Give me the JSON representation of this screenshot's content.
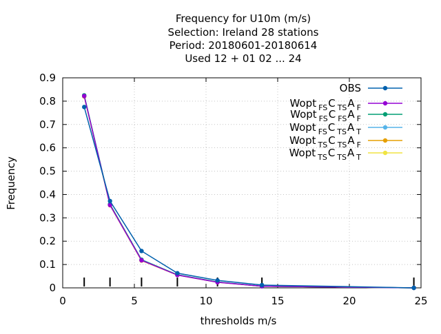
{
  "chart_data": {
    "type": "line",
    "title_lines": [
      "Frequency  for U10m (m/s)",
      "Selection: Ireland      28 stations",
      "Period: 20180601-20180614",
      "Used  12 + 01 02 ... 24"
    ],
    "xlabel": "thresholds m/s",
    "ylabel": "Frequency",
    "xlim": [
      0,
      25
    ],
    "ylim": [
      0,
      0.9
    ],
    "xticks": [
      "0",
      "5",
      "10",
      "15",
      "20",
      "25"
    ],
    "xtick_values": [
      0,
      5,
      10,
      15,
      20,
      25
    ],
    "yticks": [
      "0",
      "0.1",
      "0.2",
      "0.3",
      "0.4",
      "0.5",
      "0.6",
      "0.7",
      "0.8",
      "0.9"
    ],
    "ytick_values": [
      0,
      0.1,
      0.2,
      0.3,
      0.4,
      0.5,
      0.6,
      0.7,
      0.8,
      0.9
    ],
    "threshold_markers": [
      1.5,
      3.3,
      5.5,
      8,
      10.8,
      13.9,
      24.5
    ],
    "grid": true,
    "legend_position": "top-right",
    "series": [
      {
        "name": "OBS",
        "label_base": "OBS",
        "label_parts": [],
        "color": "#0060ad",
        "x": [
          1.5,
          3.3,
          5.5,
          8,
          10.8,
          13.9,
          24.5
        ],
        "y": [
          0.775,
          0.372,
          0.158,
          0.063,
          0.032,
          0.012,
          0.0
        ]
      },
      {
        "name": "Wopt FS CTS AF",
        "label_base": "Wopt",
        "label_parts": [
          [
            "FS",
            "C"
          ],
          [
            "TS",
            "A"
          ],
          [
            "F",
            ""
          ]
        ],
        "color": "#9400d3",
        "x": [
          1.5,
          3.3,
          5.5,
          8,
          10.8,
          13.9,
          24.5
        ],
        "y": [
          0.822,
          0.355,
          0.118,
          0.055,
          0.024,
          0.007,
          0.0
        ]
      },
      {
        "name": "Wopt FS CFS AF",
        "label_base": "Wopt",
        "label_parts": [
          [
            "FS",
            "C"
          ],
          [
            "FS",
            "A"
          ],
          [
            "F",
            ""
          ]
        ],
        "color": "#009e73",
        "x": [
          1.5,
          3.3,
          5.5,
          8,
          10.8,
          13.9,
          24.5
        ],
        "y": [
          0.825,
          0.358,
          0.12,
          0.056,
          0.025,
          0.007,
          0.0
        ]
      },
      {
        "name": "Wopt FS CTS AT",
        "label_base": "Wopt",
        "label_parts": [
          [
            "FS",
            "C"
          ],
          [
            "TS",
            "A"
          ],
          [
            "T",
            ""
          ]
        ],
        "color": "#56b4e9",
        "x": [
          1.5,
          3.3,
          5.5,
          8,
          10.8,
          13.9,
          24.5
        ],
        "y": [
          0.823,
          0.357,
          0.121,
          0.056,
          0.025,
          0.007,
          0.0
        ]
      },
      {
        "name": "Wopt TS CTS AF",
        "label_base": "Wopt",
        "label_parts": [
          [
            "TS",
            "C"
          ],
          [
            "TS",
            "A"
          ],
          [
            "F",
            ""
          ]
        ],
        "color": "#e69f00",
        "x": [
          1.5,
          3.3,
          5.5,
          8,
          10.8,
          13.9,
          24.5
        ],
        "y": [
          0.821,
          0.354,
          0.117,
          0.055,
          0.024,
          0.007,
          0.0
        ]
      },
      {
        "name": "Wopt TS CTS AT",
        "label_base": "Wopt",
        "label_parts": [
          [
            "TS",
            "C"
          ],
          [
            "TS",
            "A"
          ],
          [
            "T",
            ""
          ]
        ],
        "color": "#f0e442",
        "x": [
          1.5,
          3.3,
          5.5,
          8,
          10.8,
          13.9,
          24.5
        ],
        "y": [
          0.82,
          0.356,
          0.12,
          0.056,
          0.025,
          0.007,
          0.0
        ]
      }
    ]
  }
}
